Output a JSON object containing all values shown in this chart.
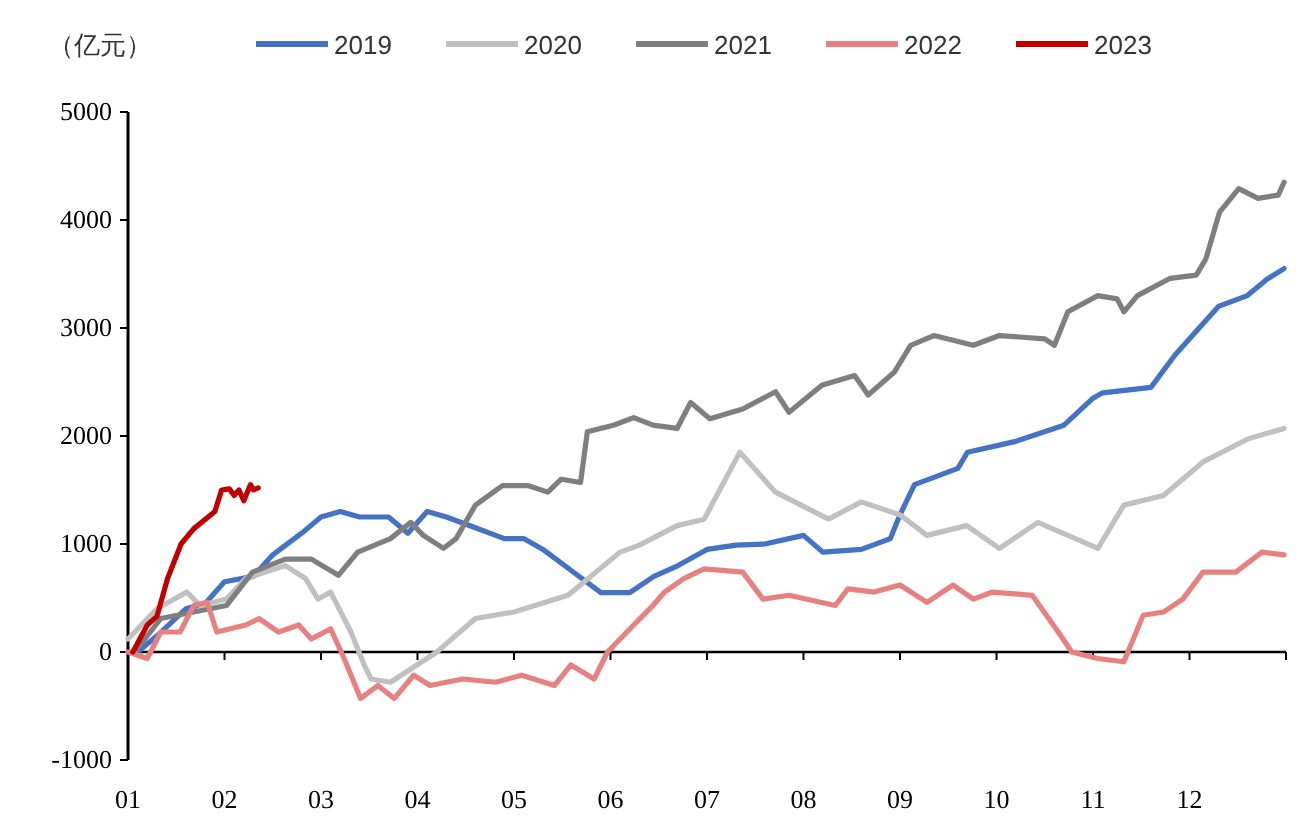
{
  "chart_data": {
    "type": "line",
    "ylabel": "（亿元）",
    "legend": "top",
    "line_style": "solid",
    "marker": "none",
    "xlim": [
      1,
      13
    ],
    "xticks": [
      {
        "value": 1,
        "label": "01"
      },
      {
        "value": 2,
        "label": "02"
      },
      {
        "value": 3,
        "label": "03"
      },
      {
        "value": 4,
        "label": "04"
      },
      {
        "value": 5,
        "label": "05"
      },
      {
        "value": 6,
        "label": "06"
      },
      {
        "value": 7,
        "label": "07"
      },
      {
        "value": 8,
        "label": "08"
      },
      {
        "value": 9,
        "label": "09"
      },
      {
        "value": 10,
        "label": "10"
      },
      {
        "value": 11,
        "label": "11"
      },
      {
        "value": 12,
        "label": "12"
      },
      {
        "value": 13,
        "label": null
      }
    ],
    "ylim": [
      -1000,
      5000
    ],
    "yticks": [
      -1000,
      0,
      1000,
      2000,
      3000,
      4000,
      5000
    ],
    "series": [
      {
        "name": "2019",
        "color": "#4472c4",
        "x": [
          1.1,
          1.3,
          1.6,
          1.8,
          2.0,
          2.3,
          2.5,
          2.8,
          3.0,
          3.2,
          3.4,
          3.7,
          3.9,
          4.1,
          4.3,
          4.6,
          4.9,
          5.1,
          5.3,
          5.6,
          5.9,
          6.2,
          6.45,
          6.7,
          7.0,
          7.3,
          7.6,
          8.0,
          8.2,
          8.6,
          8.9,
          9.0,
          9.15,
          9.6,
          9.7,
          10.2,
          10.7,
          11.0,
          11.1,
          11.6,
          11.85,
          12.1,
          12.3,
          12.6,
          12.8,
          12.98
        ],
        "values": [
          0,
          150,
          400,
          450,
          650,
          700,
          900,
          1100,
          1250,
          1300,
          1250,
          1250,
          1100,
          1300,
          1250,
          1150,
          1050,
          1050,
          950,
          750,
          550,
          550,
          700,
          800,
          950,
          990,
          1000,
          1080,
          925,
          950,
          1050,
          1270,
          1550,
          1700,
          1850,
          1950,
          2100,
          2350,
          2400,
          2450,
          2750,
          3000,
          3200,
          3300,
          3450,
          3550
        ]
      },
      {
        "name": "2020",
        "color": "#c0c0c0",
        "x": [
          1.0,
          1.3,
          1.61,
          1.75,
          2.02,
          2.22,
          2.63,
          2.84,
          2.97,
          3.1,
          3.31,
          3.45,
          3.52,
          3.72,
          4.2,
          4.6,
          5.0,
          5.56,
          6.1,
          6.3,
          6.69,
          6.97,
          7.34,
          7.71,
          8.26,
          8.6,
          9.0,
          9.28,
          9.69,
          10.03,
          10.43,
          11.05,
          11.32,
          11.73,
          12.14,
          12.61,
          12.98
        ],
        "values": [
          120,
          400,
          555,
          430,
          490,
          680,
          800,
          680,
          490,
          555,
          185,
          -125,
          -250,
          -280,
          0,
          310,
          370,
          525,
          925,
          990,
          1170,
          1230,
          1850,
          1480,
          1230,
          1390,
          1270,
          1080,
          1170,
          960,
          1200,
          960,
          1360,
          1450,
          1760,
          1975,
          2070
        ]
      },
      {
        "name": "2021",
        "color": "#7f7f7f",
        "x": [
          1.07,
          1.34,
          1.68,
          2.02,
          2.29,
          2.63,
          2.9,
          3.18,
          3.38,
          3.72,
          3.93,
          4.06,
          4.27,
          4.4,
          4.6,
          4.88,
          5.15,
          5.35,
          5.49,
          5.69,
          5.76,
          6.03,
          6.24,
          6.44,
          6.69,
          6.83,
          7.03,
          7.37,
          7.71,
          7.85,
          8.19,
          8.53,
          8.67,
          8.94,
          9.11,
          9.35,
          9.76,
          10.03,
          10.5,
          10.6,
          10.74,
          11.05,
          11.25,
          11.32,
          11.46,
          11.8,
          12.07,
          12.17,
          12.31,
          12.51,
          12.71,
          12.92,
          12.98
        ],
        "values": [
          0,
          310,
          370,
          430,
          740,
          860,
          860,
          710,
          925,
          1050,
          1200,
          1080,
          960,
          1050,
          1360,
          1540,
          1540,
          1480,
          1600,
          1570,
          2040,
          2100,
          2170,
          2100,
          2070,
          2310,
          2160,
          2250,
          2410,
          2220,
          2470,
          2560,
          2380,
          2590,
          2840,
          2930,
          2840,
          2930,
          2900,
          2840,
          3150,
          3300,
          3270,
          3150,
          3300,
          3460,
          3490,
          3640,
          4070,
          4290,
          4200,
          4230,
          4350
        ]
      },
      {
        "name": "2022",
        "color": "#e88080",
        "x": [
          1.0,
          1.2,
          1.34,
          1.54,
          1.68,
          1.82,
          1.92,
          2.22,
          2.36,
          2.56,
          2.77,
          2.9,
          3.1,
          3.24,
          3.41,
          3.59,
          3.76,
          3.96,
          4.13,
          4.47,
          4.81,
          5.08,
          5.42,
          5.59,
          5.83,
          5.97,
          6.24,
          6.44,
          6.56,
          6.76,
          6.97,
          7.37,
          7.58,
          7.85,
          8.33,
          8.46,
          8.73,
          9.0,
          9.28,
          9.55,
          9.76,
          9.96,
          10.37,
          10.64,
          10.78,
          11.05,
          11.32,
          11.52,
          11.73,
          11.93,
          12.14,
          12.48,
          12.75,
          12.98
        ],
        "values": [
          0,
          -60,
          185,
          185,
          430,
          460,
          185,
          250,
          310,
          185,
          250,
          120,
          215,
          -60,
          -430,
          -310,
          -430,
          -215,
          -310,
          -250,
          -280,
          -215,
          -310,
          -120,
          -250,
          0,
          250,
          430,
          555,
          680,
          770,
          740,
          490,
          525,
          430,
          585,
          555,
          620,
          460,
          620,
          490,
          555,
          525,
          185,
          0,
          -60,
          -90,
          340,
          370,
          490,
          740,
          740,
          925,
          900
        ]
      },
      {
        "name": "2023",
        "color": "#c00000",
        "x": [
          1.05,
          1.2,
          1.3,
          1.41,
          1.55,
          1.68,
          1.9,
          1.97,
          2.05,
          2.1,
          2.15,
          2.2,
          2.27,
          2.3,
          2.35
        ],
        "values": [
          0,
          250,
          330,
          680,
          1000,
          1140,
          1300,
          1500,
          1510,
          1450,
          1500,
          1400,
          1550,
          1500,
          1520
        ]
      }
    ]
  }
}
